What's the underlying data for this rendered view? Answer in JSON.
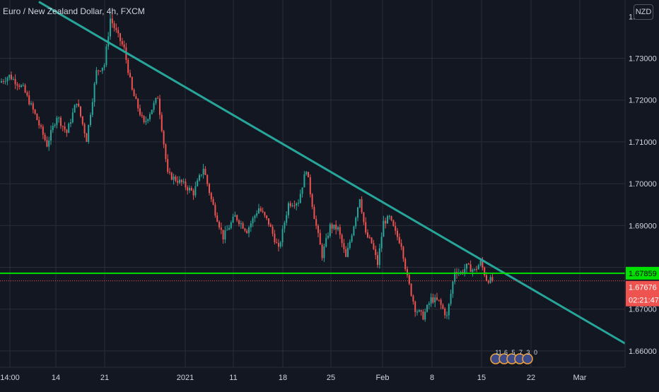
{
  "header": {
    "symbol_title": "Euro / New Zealand Dollar, 4h, FXCM",
    "currency_badge": "NZD",
    "top_tick_fragment": "1."
  },
  "colors": {
    "background": "#131722",
    "grid": "#2a2e39",
    "up_candle": "#26a69a",
    "down_candle": "#ef5350",
    "trendline": "#26a69a",
    "horizontal_line": "#00e000",
    "horizontal_label_bg": "#00e000",
    "price_label_bg": "#ef5350",
    "axis_text": "#d1d4dc"
  },
  "chart_data": {
    "type": "candlestick",
    "title": "Euro / New Zealand Dollar, 4h, FXCM",
    "x_tick_labels": [
      "14:00",
      "14",
      "21",
      "2021",
      "11",
      "18",
      "25",
      "Feb",
      "8",
      "15",
      "22",
      "Mar"
    ],
    "y_tick_labels": [
      "1.73000",
      "1.72000",
      "1.71000",
      "1.70000",
      "1.69000",
      "1.67000",
      "1.66000"
    ],
    "ylim": [
      1.6575,
      1.7425
    ],
    "grid": true,
    "price_path": {
      "knots": [
        [
          0,
          1.7242
        ],
        [
          5,
          1.7258
        ],
        [
          12,
          1.7228
        ],
        [
          18,
          1.7165
        ],
        [
          24,
          1.7093
        ],
        [
          29,
          1.7162
        ],
        [
          34,
          1.7122
        ],
        [
          39,
          1.7198
        ],
        [
          44,
          1.7106
        ],
        [
          49,
          1.7268
        ],
        [
          53,
          1.7285
        ],
        [
          56,
          1.7395
        ],
        [
          60,
          1.7352
        ],
        [
          63,
          1.7322
        ],
        [
          67,
          1.7222
        ],
        [
          73,
          1.7142
        ],
        [
          80,
          1.7208
        ],
        [
          85,
          1.7022
        ],
        [
          92,
          1.7002
        ],
        [
          98,
          1.6978
        ],
        [
          103,
          1.7038
        ],
        [
          107,
          1.6962
        ],
        [
          113,
          1.6872
        ],
        [
          119,
          1.6922
        ],
        [
          125,
          1.6888
        ],
        [
          131,
          1.6942
        ],
        [
          136,
          1.6906
        ],
        [
          141,
          1.6842
        ],
        [
          146,
          1.6952
        ],
        [
          151,
          1.6958
        ],
        [
          155,
          1.7036
        ],
        [
          159,
          1.6922
        ],
        [
          163,
          1.6828
        ],
        [
          167,
          1.6898
        ],
        [
          171,
          1.6892
        ],
        [
          175,
          1.6822
        ],
        [
          179,
          1.6902
        ],
        [
          182,
          1.6968
        ],
        [
          185,
          1.6878
        ],
        [
          188,
          1.6858
        ],
        [
          191,
          1.6808
        ],
        [
          194,
          1.6908
        ],
        [
          197,
          1.6918
        ],
        [
          200,
          1.6882
        ],
        [
          203,
          1.6855
        ],
        [
          206,
          1.6775
        ],
        [
          210,
          1.6701
        ],
        [
          214,
          1.6682
        ],
        [
          218,
          1.6724
        ],
        [
          222,
          1.6718
        ],
        [
          226,
          1.6682
        ],
        [
          230,
          1.6792
        ],
        [
          233,
          1.6787
        ],
        [
          236,
          1.6802
        ],
        [
          240,
          1.6792
        ],
        [
          243,
          1.6812
        ],
        [
          246,
          1.6772
        ],
        [
          249,
          1.6768
        ]
      ],
      "candle_count": 249,
      "ohlc_detail": "approximate"
    },
    "candle_count_note": "approximate",
    "trendline": {
      "x1_label": "Dec 11 (approx.)",
      "y1": 1.7435,
      "x2_label": "Mar 2 (approx.)",
      "y2": 1.6618
    },
    "horizontal_level": 1.67859,
    "last_price": 1.67676,
    "price_labels": {
      "level": "1.67859",
      "last": "1.67676",
      "countdown": "02:21:47"
    }
  },
  "event_markers": {
    "labels": [
      "11",
      "6",
      "5",
      "7",
      "3",
      "0"
    ]
  }
}
